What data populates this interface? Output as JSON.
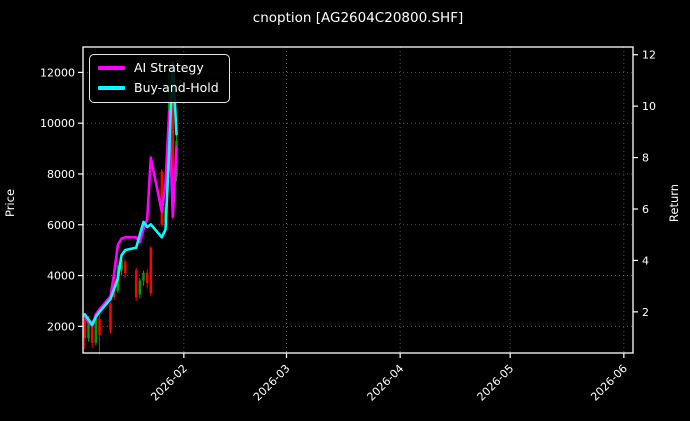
{
  "title": "cnoption [AG2604C20800.SHF]",
  "legend": {
    "items": [
      {
        "label": "AI Strategy",
        "color": "#ff00ff"
      },
      {
        "label": "Buy-and-Hold",
        "color": "#00ffff"
      }
    ]
  },
  "colors": {
    "background": "#000000",
    "text": "#ffffff",
    "grid": "#7a7a7a",
    "border": "#ffffff",
    "candle_up": "#00a000",
    "candle_down": "#ff0000",
    "ai_strategy": "#ff00ff",
    "buy_and_hold": "#00ffff"
  },
  "chart_data": {
    "type": "candlestick_with_lines",
    "title": "cnoption [AG2604C20800.SHF]",
    "grid": "dotted",
    "legend_position": "upper left",
    "x_axis": {
      "range_days": [
        -0.5,
        149.5
      ],
      "start_date": "2026-01-05",
      "ticks": [
        {
          "day": 27,
          "label": "2026-02"
        },
        {
          "day": 55,
          "label": "2026-03"
        },
        {
          "day": 86,
          "label": "2026-04"
        },
        {
          "day": 116,
          "label": "2026-05"
        },
        {
          "day": 147,
          "label": "2026-06"
        }
      ]
    },
    "left_axis": {
      "label": "Price",
      "range": [
        950,
        13000
      ],
      "ticks": [
        2000,
        4000,
        6000,
        8000,
        10000,
        12000
      ]
    },
    "right_axis": {
      "label": "Return",
      "range": [
        0.4,
        12.3
      ],
      "ticks": [
        2,
        4,
        6,
        8,
        10,
        12
      ]
    },
    "candles_ohlc_by_day": [
      [
        0,
        2400,
        2520,
        1100,
        1550
      ],
      [
        1,
        1550,
        2400,
        1400,
        2150
      ],
      [
        2,
        2150,
        2250,
        1150,
        1350
      ],
      [
        3,
        1350,
        2450,
        1250,
        2300
      ],
      [
        4,
        2300,
        2400,
        900,
        1650
      ],
      [
        7,
        2900,
        2950,
        1700,
        1850
      ],
      [
        8,
        4100,
        4400,
        3050,
        3150
      ],
      [
        9,
        3400,
        4550,
        3300,
        4400
      ],
      [
        10,
        4200,
        4700,
        4000,
        4600
      ],
      [
        11,
        4550,
        4650,
        3900,
        4100
      ],
      [
        14,
        4200,
        4300,
        3000,
        3150
      ],
      [
        15,
        3250,
        3900,
        3100,
        3800
      ],
      [
        16,
        3800,
        4200,
        3600,
        4100
      ],
      [
        17,
        4100,
        4250,
        3500,
        3700
      ],
      [
        18,
        5100,
        5150,
        3200,
        3300
      ],
      [
        21,
        8100,
        8200,
        5900,
        6000
      ],
      [
        22,
        6100,
        6800,
        5800,
        6700
      ],
      [
        23,
        8100,
        12450,
        7900,
        12000
      ],
      [
        24,
        12000,
        12300,
        6200,
        7100
      ],
      [
        25,
        7900,
        9500,
        7700,
        9300
      ]
    ],
    "series": [
      {
        "name": "AI Strategy",
        "color": "#ff00ff",
        "axis": "right",
        "points": [
          [
            0,
            1.85
          ],
          [
            1,
            1.6
          ],
          [
            2,
            1.45
          ],
          [
            3,
            1.9
          ],
          [
            4,
            2.1
          ],
          [
            7,
            2.6
          ],
          [
            8,
            3.5
          ],
          [
            9,
            4.6
          ],
          [
            10,
            4.85
          ],
          [
            11,
            4.9
          ],
          [
            14,
            4.9
          ],
          [
            15,
            4.7
          ],
          [
            16,
            5.2
          ],
          [
            17,
            5.6
          ],
          [
            18,
            8.0
          ],
          [
            21,
            5.9
          ],
          [
            22,
            7.0
          ],
          [
            23,
            9.8
          ],
          [
            24,
            5.7
          ],
          [
            25,
            8.4
          ]
        ]
      },
      {
        "name": "Buy-and-Hold",
        "color": "#00ffff",
        "axis": "right",
        "points": [
          [
            0,
            1.9
          ],
          [
            1,
            1.7
          ],
          [
            2,
            1.5
          ],
          [
            3,
            1.8
          ],
          [
            4,
            2.0
          ],
          [
            7,
            2.5
          ],
          [
            8,
            2.9
          ],
          [
            9,
            3.3
          ],
          [
            10,
            4.2
          ],
          [
            11,
            4.4
          ],
          [
            14,
            4.5
          ],
          [
            15,
            5.0
          ],
          [
            16,
            5.5
          ],
          [
            17,
            5.3
          ],
          [
            18,
            5.4
          ],
          [
            21,
            4.9
          ],
          [
            22,
            5.2
          ],
          [
            23,
            8.3
          ],
          [
            24,
            11.7
          ],
          [
            25,
            8.9
          ]
        ]
      }
    ]
  }
}
